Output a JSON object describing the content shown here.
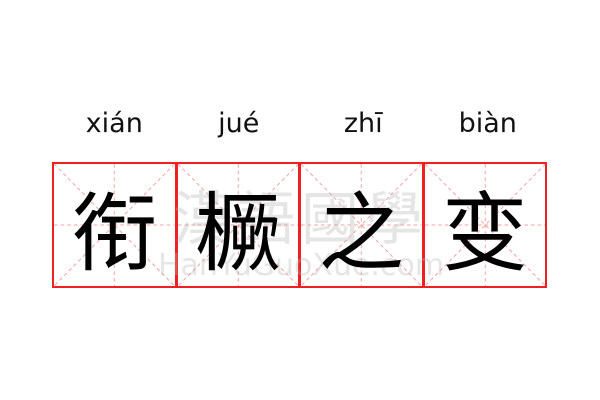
{
  "pinyin": [
    "xián",
    "jué",
    "zhī",
    "biàn"
  ],
  "characters": [
    "衔",
    "橛",
    "之",
    "变"
  ],
  "watermark": {
    "chinese": "漢語國學",
    "latin": "HanYuGuoXue.com"
  },
  "colors": {
    "grid_border": "#f02020",
    "grid_guides": "#f7a0a0",
    "text": "#000000"
  }
}
